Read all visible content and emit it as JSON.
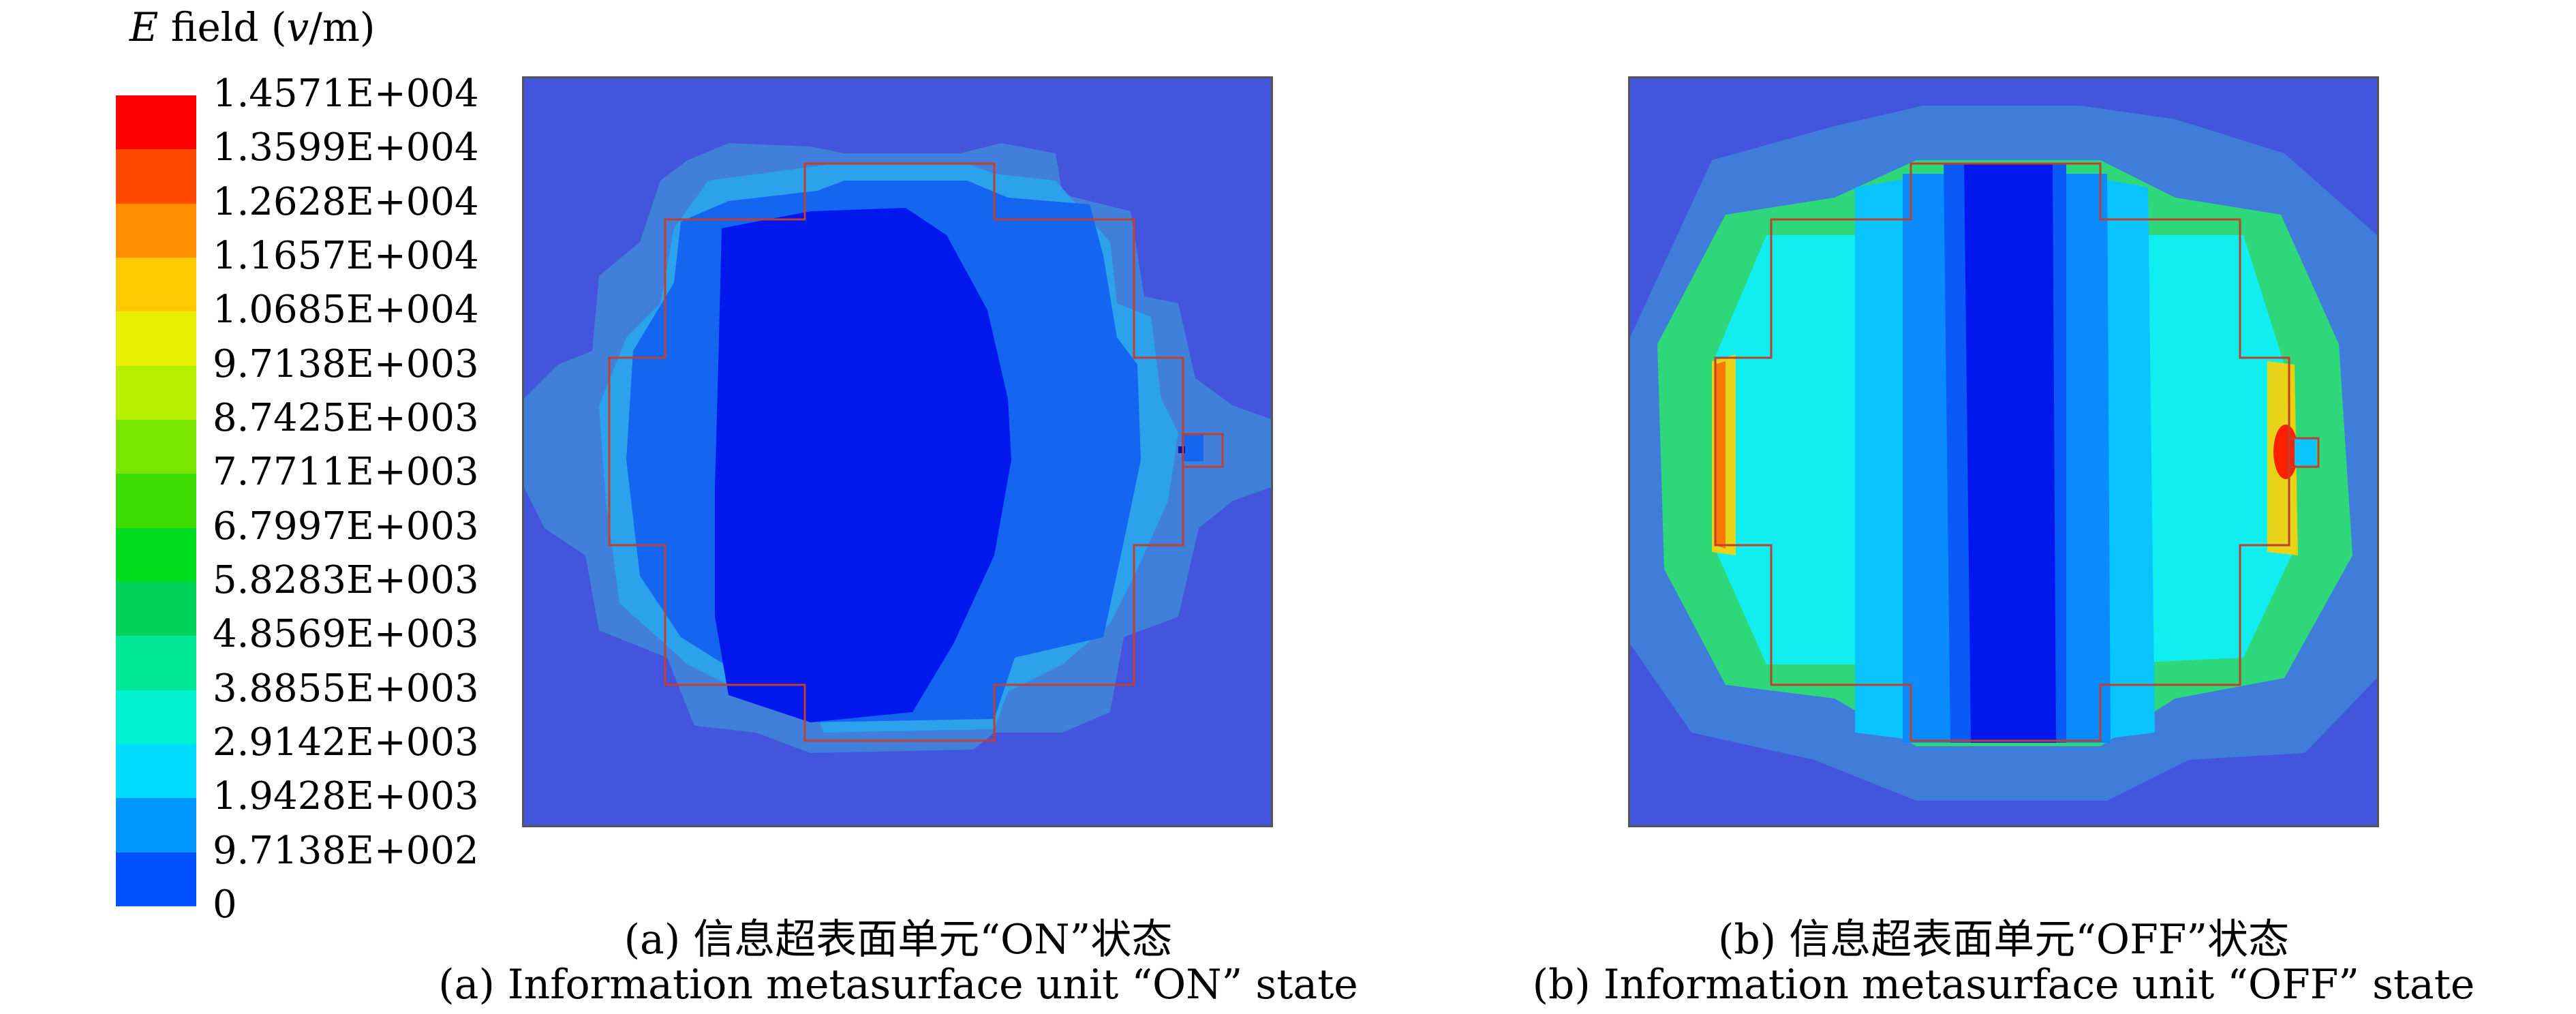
{
  "legend": {
    "quantity": "E",
    "title_rest": " field (",
    "unit_v": "v",
    "unit_rest": "/m)",
    "ticks": [
      "1.4571E+004",
      "1.3599E+004",
      "1.2628E+004",
      "1.1657E+004",
      "1.0685E+004",
      "9.7138E+003",
      "8.7425E+003",
      "7.7711E+003",
      "6.7997E+003",
      "5.8283E+003",
      "4.8569E+003",
      "3.8855E+003",
      "2.9142E+003",
      "1.9428E+003",
      "9.7138E+002",
      "0"
    ],
    "colors": [
      "#ff0000",
      "#ff4a00",
      "#ff8f00",
      "#ffc800",
      "#e6f000",
      "#b4f000",
      "#78e600",
      "#3cdc00",
      "#00dc1e",
      "#00d25a",
      "#00e696",
      "#00f0d2",
      "#00dcff",
      "#0096ff",
      "#0050ff",
      "#0014ff"
    ]
  },
  "panels": {
    "on": {
      "caption_cn": "(a) 信息超表面单元“ON”状态",
      "caption_en": "(a) Information metasurface unit “ON” state"
    },
    "off": {
      "caption_cn": "(b) 信息超表面单元“OFF”状态",
      "caption_en": "(b) Information metasurface unit “OFF” state"
    }
  },
  "colors": {
    "background_field": "#4455dd",
    "outline": "#c04030"
  }
}
